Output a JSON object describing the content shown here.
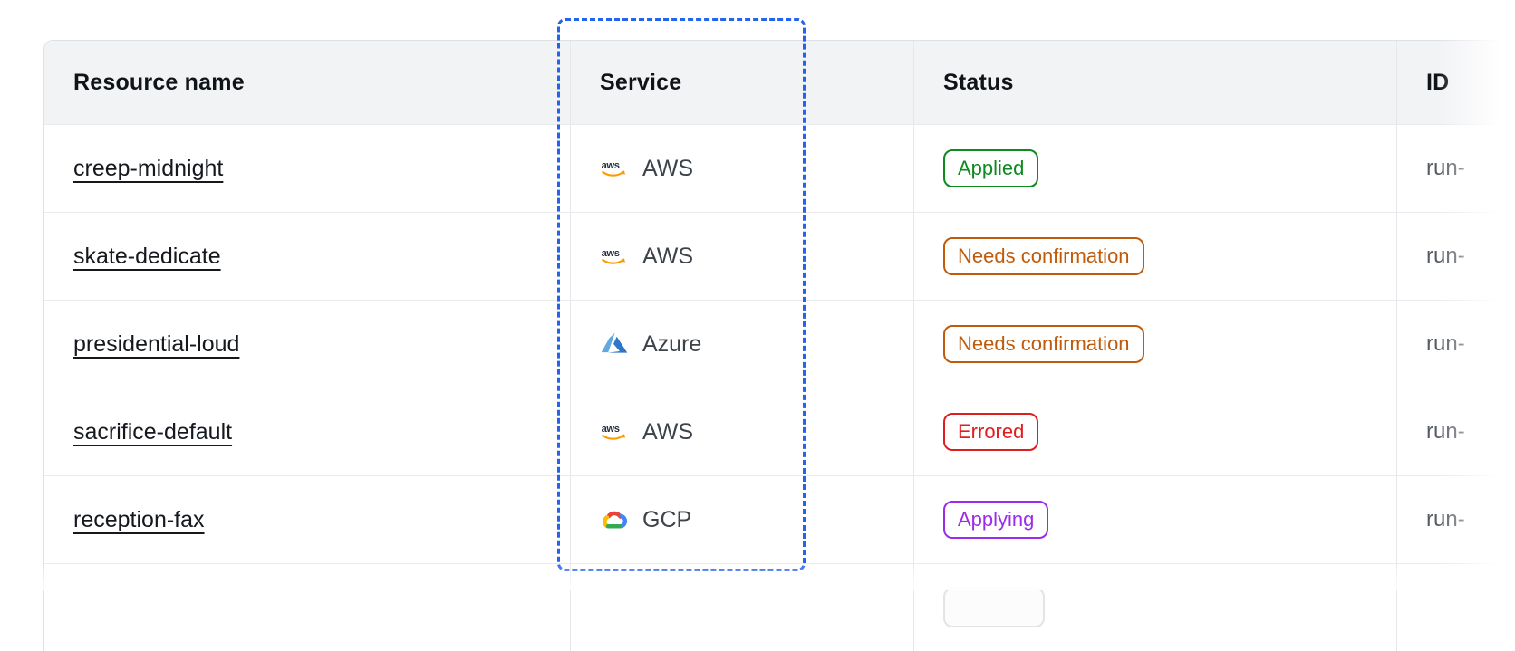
{
  "highlight": {
    "target": "service-column",
    "style": "dashed-rectangle",
    "color": "#2563eb"
  },
  "table": {
    "columns": [
      {
        "key": "resource_name",
        "label": "Resource name"
      },
      {
        "key": "service",
        "label": "Service"
      },
      {
        "key": "status",
        "label": "Status"
      },
      {
        "key": "id",
        "label": "ID"
      }
    ],
    "rows": [
      {
        "name": "creep-midnight",
        "service": {
          "label": "AWS",
          "icon": "aws-icon"
        },
        "status": {
          "label": "Applied",
          "variant": "green"
        },
        "id": "run-"
      },
      {
        "name": "skate-dedicate",
        "service": {
          "label": "AWS",
          "icon": "aws-icon"
        },
        "status": {
          "label": "Needs confirmation",
          "variant": "orange"
        },
        "id": "run-"
      },
      {
        "name": "presidential-loud",
        "service": {
          "label": "Azure",
          "icon": "azure-icon"
        },
        "status": {
          "label": "Needs confirmation",
          "variant": "orange"
        },
        "id": "run-"
      },
      {
        "name": "sacrifice-default",
        "service": {
          "label": "AWS",
          "icon": "aws-icon"
        },
        "status": {
          "label": "Errored",
          "variant": "red"
        },
        "id": "run-"
      },
      {
        "name": "reception-fax",
        "service": {
          "label": "GCP",
          "icon": "gcp-icon"
        },
        "status": {
          "label": "Applying",
          "variant": "purple"
        },
        "id": "run-"
      }
    ],
    "id_values_truncated_by_right_fade": true,
    "partial_sixth_row_badge_visible": true
  },
  "status_colors": {
    "green": "#0e8a1f",
    "orange": "#bf5b0b",
    "red": "#e11e1e",
    "purple": "#9d2cea"
  }
}
